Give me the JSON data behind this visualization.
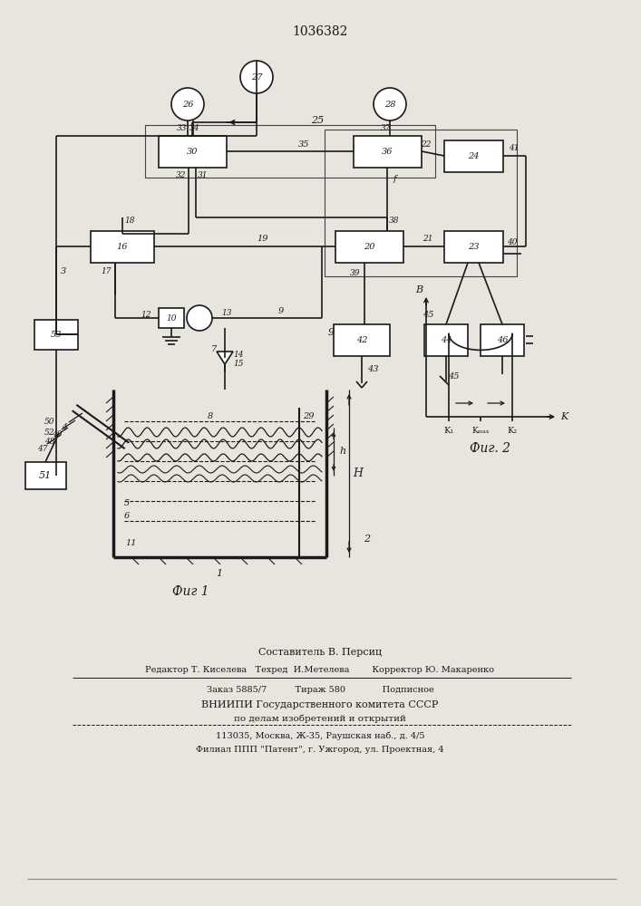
{
  "title": "1036382",
  "bg_color": "#e8e4de",
  "line_color": "#1a1a1a",
  "fig1_label": "Фиг 1",
  "fig2_label": "Фиг. 2",
  "footer_lines": [
    "Составитель В. Персиц",
    "Редактор Т. Киселева   Техред  И.Метелева        Корректор Ю. Макаренко",
    "Заказ 5885/7          Тираж 580             Подписное",
    "ВНИИПИ Государственного комитета СССР",
    "по делам изобретений и открытий",
    "113035, Москва, Ж-35, Раушская наб., д. 4/5",
    "Филиал ППП \"Патент\", г. Ужгород, ул. Проектная, 4"
  ]
}
